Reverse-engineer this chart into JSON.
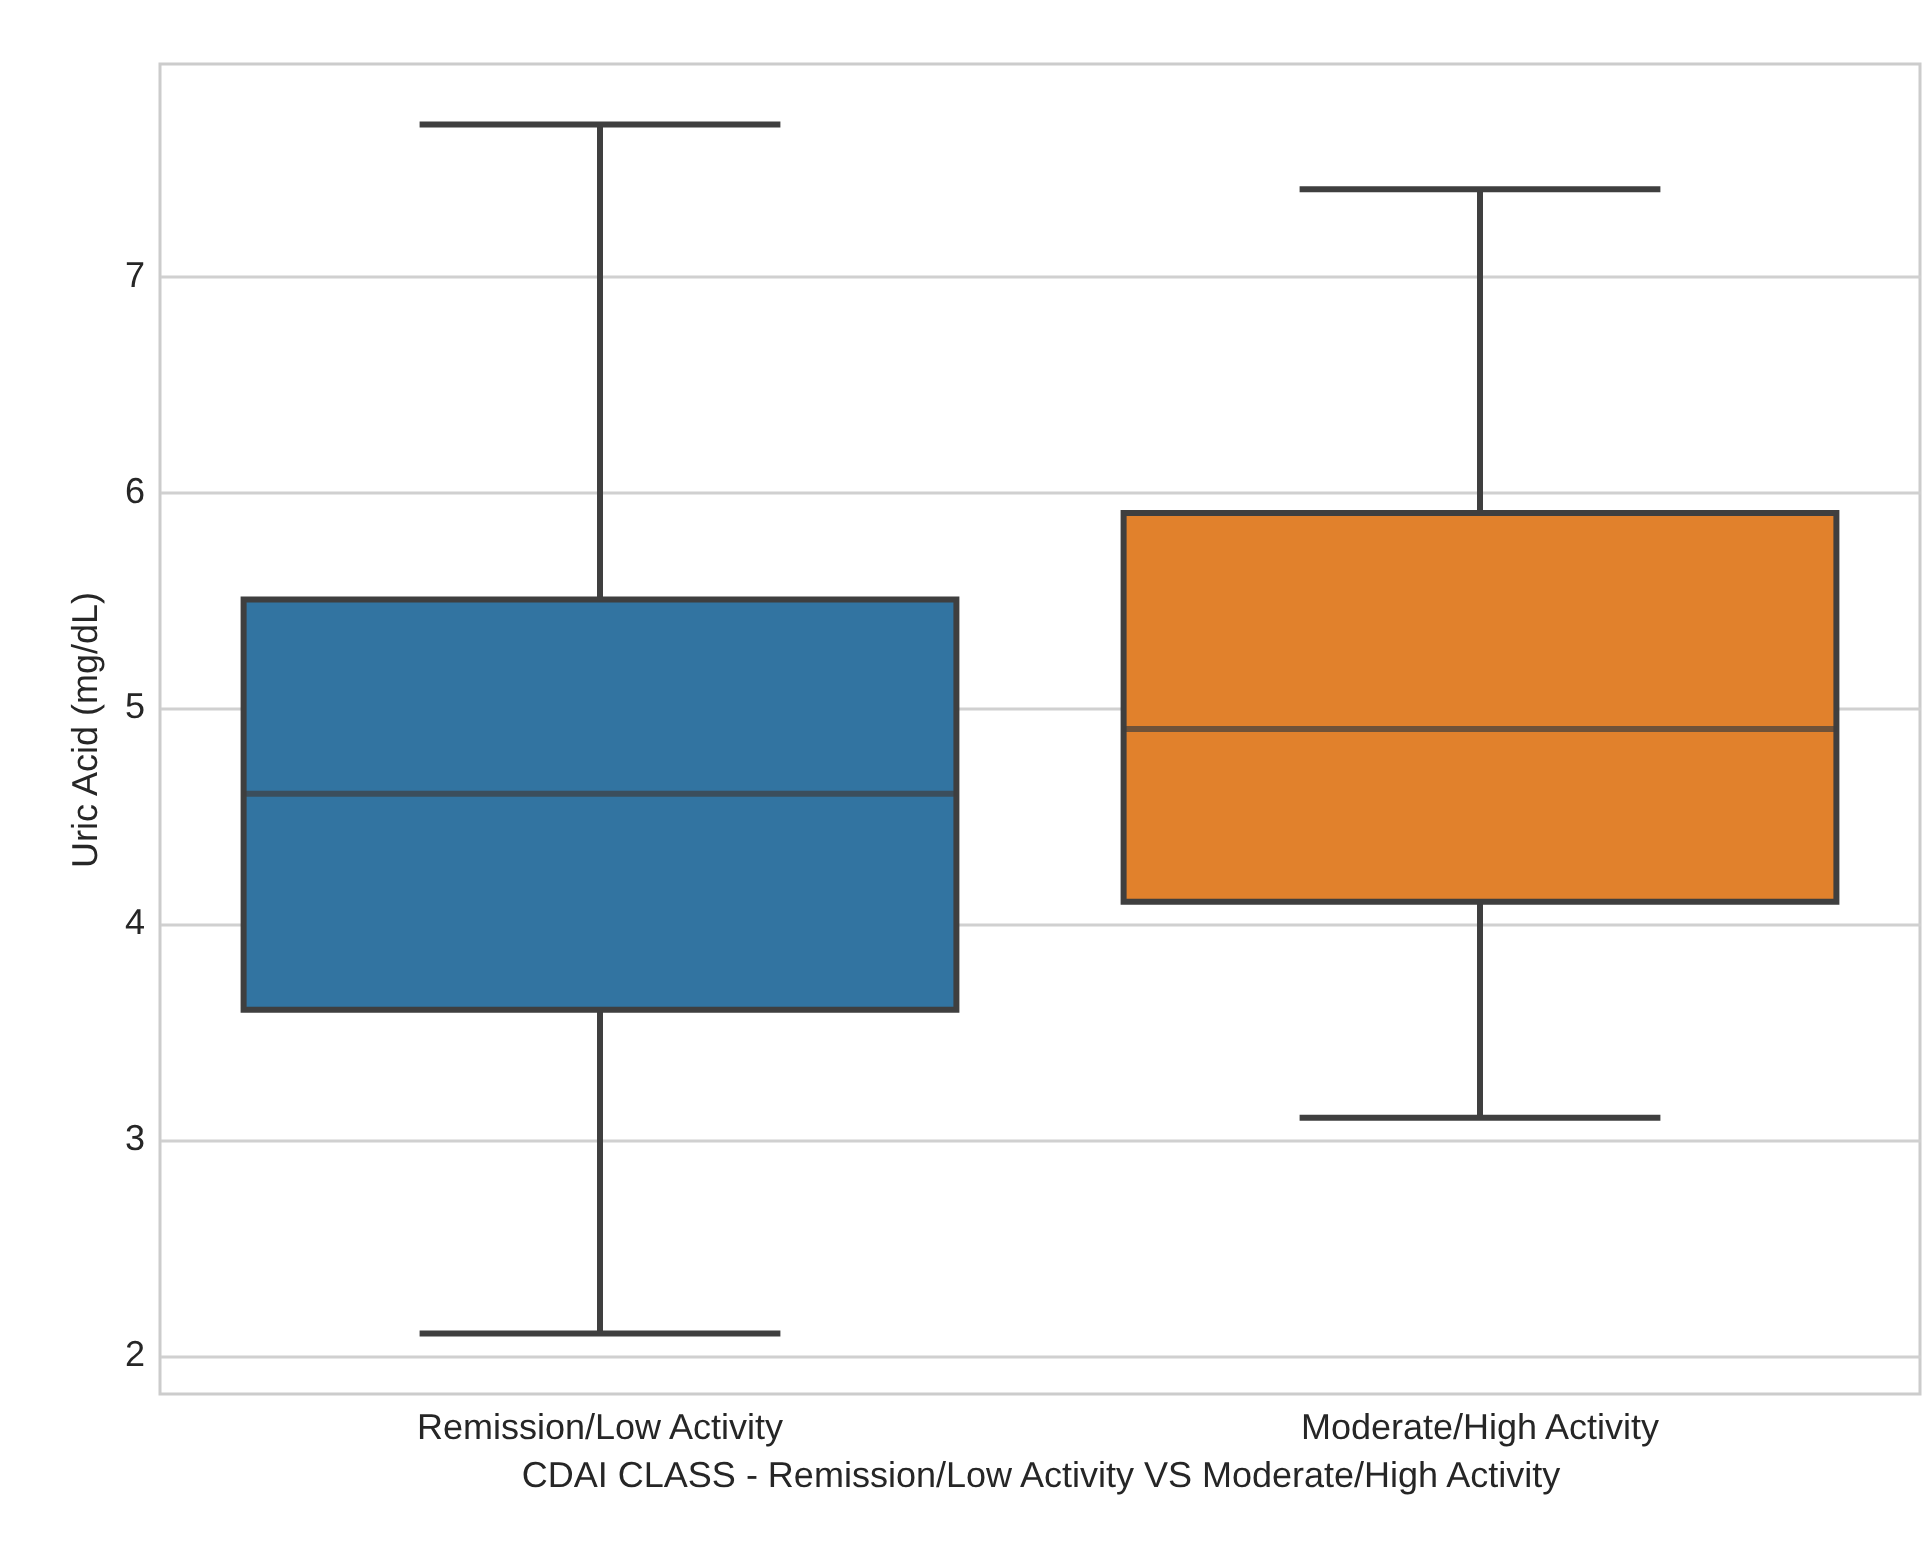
{
  "chart_data": {
    "type": "box",
    "xlabel": "CDAI CLASS - Remission/Low Activity VS Moderate/High Activity",
    "ylabel": "Uric Acid (mg/dL)",
    "categories": [
      "Remission/Low Activity",
      "Moderate/High Activity"
    ],
    "colors": [
      "#3274a1",
      "#e1812c"
    ],
    "boxes": [
      {
        "low": 2.1,
        "q1": 3.6,
        "median": 4.6,
        "q3": 5.5,
        "high": 7.7
      },
      {
        "low": 3.1,
        "q1": 4.1,
        "median": 4.9,
        "q3": 5.9,
        "high": 7.4
      }
    ],
    "ylim": [
      1.82,
      7.98
    ],
    "yticks": [
      2,
      3,
      4,
      5,
      6,
      7
    ],
    "grid": "y"
  }
}
